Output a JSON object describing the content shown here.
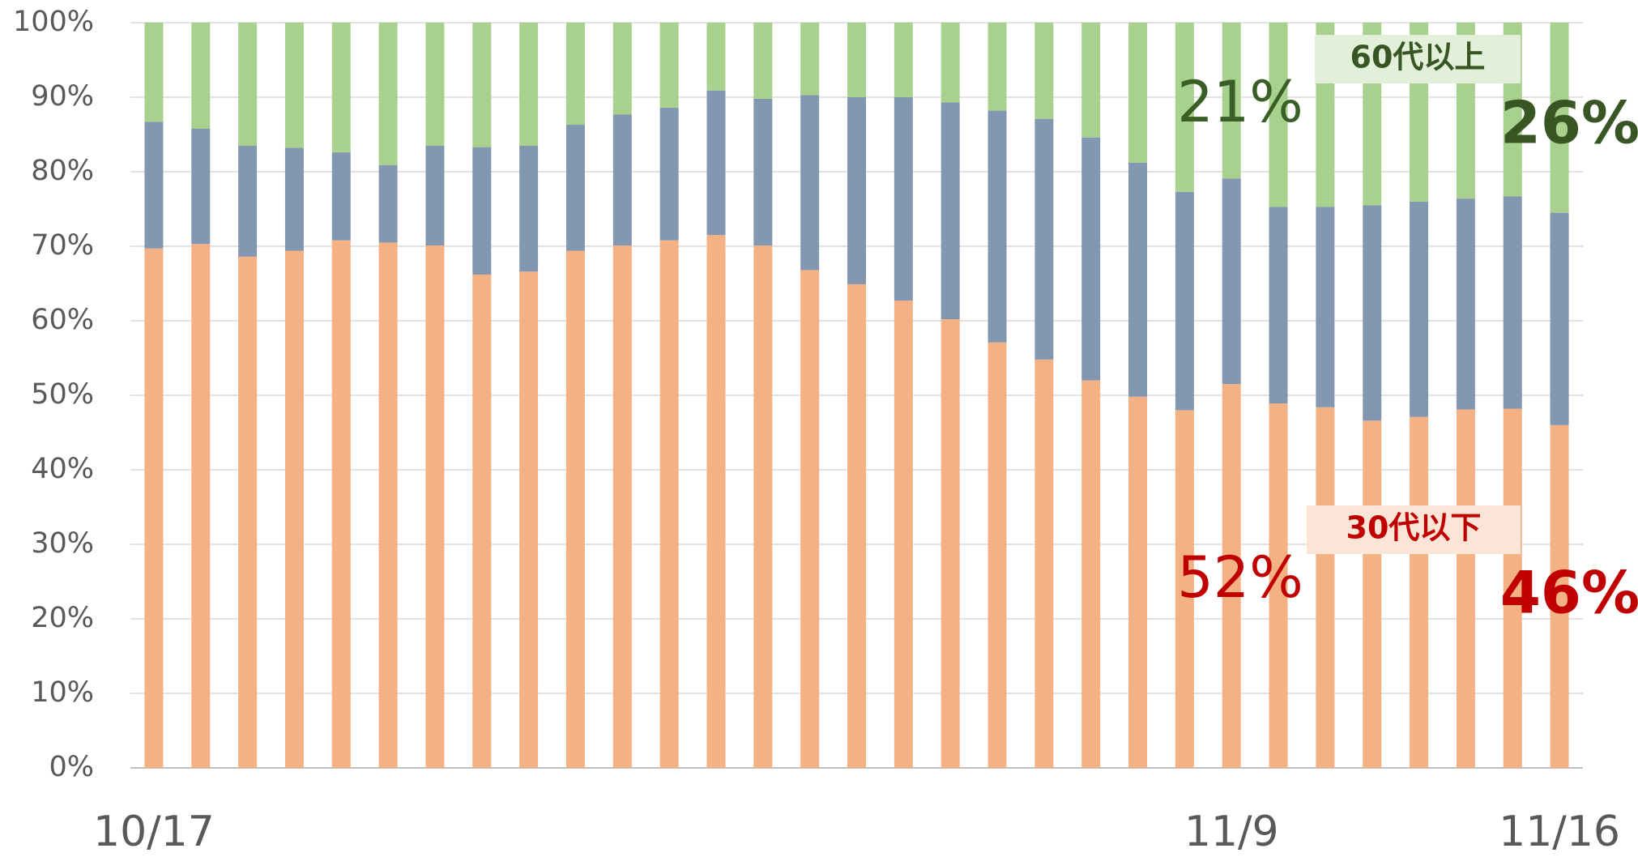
{
  "chart_data": {
    "type": "stacked_bar",
    "categories": [
      "10/17",
      null,
      null,
      null,
      null,
      null,
      null,
      null,
      null,
      null,
      null,
      null,
      null,
      null,
      null,
      null,
      null,
      null,
      null,
      null,
      null,
      null,
      null,
      "11/9",
      null,
      null,
      null,
      null,
      null,
      null,
      "11/16"
    ],
    "series": [
      {
        "color": "#f4b183",
        "values": [
          69.7,
          70.3,
          68.6,
          69.4,
          70.8,
          70.5,
          70.1,
          66.2,
          66.6,
          69.4,
          70.1,
          70.8,
          71.5,
          70.1,
          66.8,
          64.9,
          62.7,
          60.2,
          57.1,
          54.8,
          52.0,
          49.8,
          48.0,
          51.5,
          48.9,
          48.4,
          46.6,
          47.1,
          48.1,
          48.2,
          46.0
        ]
      },
      {
        "color": "#8497b0",
        "values": [
          17.0,
          15.5,
          14.9,
          13.8,
          11.8,
          10.4,
          13.4,
          17.1,
          16.9,
          16.9,
          17.6,
          17.8,
          19.4,
          19.7,
          23.5,
          25.1,
          27.3,
          29.1,
          31.1,
          32.3,
          32.6,
          31.4,
          29.3,
          27.6,
          26.4,
          26.9,
          28.9,
          28.9,
          28.3,
          28.5,
          28.5
        ]
      },
      {
        "color": "#a9d18e",
        "values": [
          13.3,
          14.2,
          16.5,
          16.8,
          17.4,
          19.1,
          16.5,
          16.7,
          16.5,
          13.7,
          12.3,
          11.4,
          9.1,
          10.2,
          9.7,
          10.0,
          10.0,
          10.7,
          11.8,
          12.9,
          15.4,
          18.8,
          22.7,
          20.9,
          24.7,
          24.7,
          24.5,
          24.0,
          23.6,
          23.3,
          25.5
        ]
      }
    ],
    "ylim": [
      0,
      100
    ],
    "yticks": [
      {
        "value": 0,
        "label": "0%"
      },
      {
        "value": 10,
        "label": "10%"
      },
      {
        "value": 20,
        "label": "20%"
      },
      {
        "value": 30,
        "label": "30%"
      },
      {
        "value": 40,
        "label": "40%"
      },
      {
        "value": 50,
        "label": "50%"
      },
      {
        "value": 60,
        "label": "60%"
      },
      {
        "value": 70,
        "label": "70%"
      },
      {
        "value": 80,
        "label": "80%"
      },
      {
        "value": 90,
        "label": "90%"
      },
      {
        "value": 100,
        "label": "100%"
      }
    ],
    "grid": true,
    "annotations": [
      {
        "text": "60代以上",
        "color": "#375623",
        "background": "#e2efd9"
      },
      {
        "text": "30代以下",
        "color": "#c00000",
        "background": "#fbe5d6"
      },
      {
        "text": "21%",
        "color": "#3a5f26"
      },
      {
        "text": "52%",
        "color": "#c00000"
      },
      {
        "text": "26%",
        "color": "#375623"
      },
      {
        "text": "46%",
        "color": "#c00000"
      }
    ]
  }
}
